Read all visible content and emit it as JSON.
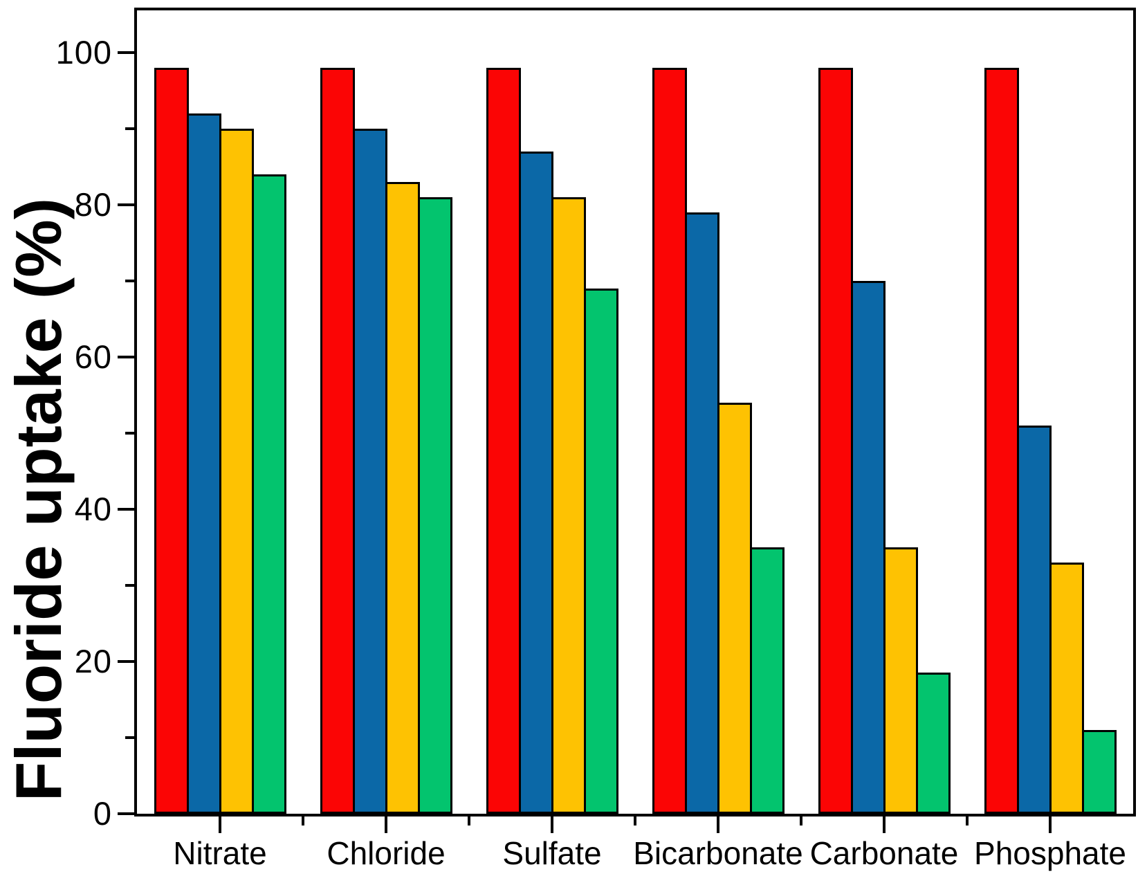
{
  "figure": {
    "background": "#ffffff",
    "axis_color": "#000000",
    "text_color": "#000000"
  },
  "chart_data": {
    "type": "bar",
    "title": "",
    "xlabel": "",
    "ylabel": "Fluoride uptake (%)",
    "categories": [
      "Nitrate",
      "Chloride",
      "Sulfate",
      "Bicarbonate",
      "Carbonate",
      "Phosphate"
    ],
    "series": [
      {
        "name": "red",
        "color": "#fb0505",
        "values": [
          98,
          98,
          98,
          98,
          98,
          98
        ]
      },
      {
        "name": "blue",
        "color": "#0b68a7",
        "values": [
          92,
          90,
          87,
          79,
          70,
          51
        ]
      },
      {
        "name": "yellow",
        "color": "#fec202",
        "values": [
          90,
          83,
          81,
          54,
          35,
          33
        ]
      },
      {
        "name": "green",
        "color": "#03c46e",
        "values": [
          84,
          81,
          69,
          35,
          18.5,
          11
        ]
      }
    ],
    "ylim": [
      0,
      105.5
    ],
    "yticks": [
      0,
      20,
      40,
      60,
      80,
      100
    ],
    "yminorticks": [
      10,
      30,
      50,
      70,
      90
    ],
    "grid": false,
    "legend_position": "none"
  }
}
